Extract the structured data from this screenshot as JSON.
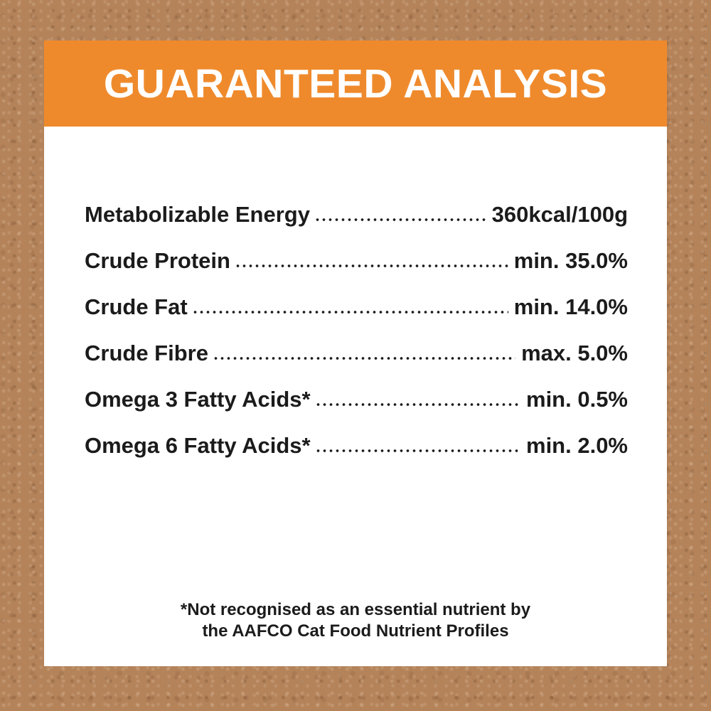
{
  "label": {
    "title": "GUARANTEED ANALYSIS",
    "rows": [
      {
        "name": "Metabolizable Energy",
        "value": "360kcal/100g"
      },
      {
        "name": "Crude Protein",
        "value": "min. 35.0%"
      },
      {
        "name": "Crude Fat",
        "value": "min. 14.0%"
      },
      {
        "name": "Crude Fibre",
        "value": "max. 5.0%"
      },
      {
        "name": "Omega 3 Fatty Acids*",
        "value": "min. 0.5%"
      },
      {
        "name": "Omega 6 Fatty Acids*",
        "value": "min. 2.0%"
      }
    ],
    "footnote": {
      "line1": "*Not recognised as an essential nutrient by",
      "line2": "the AAFCO Cat Food Nutrient Profiles"
    },
    "colors": {
      "header_bg": "#EF8A2C",
      "header_text": "#FFFFFF",
      "body_text": "#1B1B1B",
      "card_bg": "#FFFFFF",
      "background": "#B4835A"
    }
  }
}
